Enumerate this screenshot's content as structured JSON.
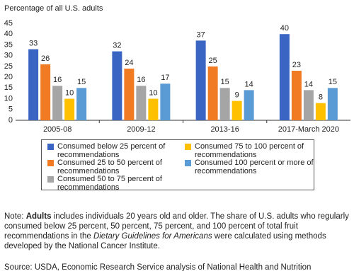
{
  "chart_data": {
    "type": "bar",
    "ylabel": "Percentage of all U.S. adults",
    "categories": [
      "2005-08",
      "2009-12",
      "2013-16",
      "2017-March 2020"
    ],
    "series": [
      {
        "name": "Consumed below 25 percent of recommendations",
        "color": "#3b65c2",
        "values": [
          33,
          32,
          37,
          40
        ]
      },
      {
        "name": "Consumed 25 to 50 percent of recommendations",
        "color": "#f07b22",
        "values": [
          26,
          24,
          25,
          23
        ]
      },
      {
        "name": "Consumed 50 to 75 percent of recommendations",
        "color": "#a5a5a5",
        "values": [
          16,
          16,
          15,
          14
        ]
      },
      {
        "name": "Consumed 75 to 100 percent of recommendations",
        "color": "#ffc000",
        "values": [
          10,
          10,
          9,
          8
        ]
      },
      {
        "name": "Consumed 100 percent or more of recommendations",
        "color": "#5b9bd5",
        "values": [
          15,
          17,
          14,
          15
        ]
      }
    ],
    "ylim": [
      0,
      45
    ],
    "yticks": [
      0,
      5,
      10,
      15,
      20,
      25,
      30,
      35,
      40,
      45
    ],
    "grid": false
  },
  "note": {
    "lead": "Note: ",
    "bold": "Adults",
    "middle": " includes individuals 20 years old and older. The share of U.S. adults who regularly consumed below 25 percent, 50 percent, 75 percent, and 100 percent of total fruit recommendations in the ",
    "italic": "Dietary Guidelines for Americans",
    "end": " were calculated using methods developed by the National Cancer Institute."
  },
  "source": "Source: USDA, Economic Research Service analysis of National Health and Nutrition"
}
